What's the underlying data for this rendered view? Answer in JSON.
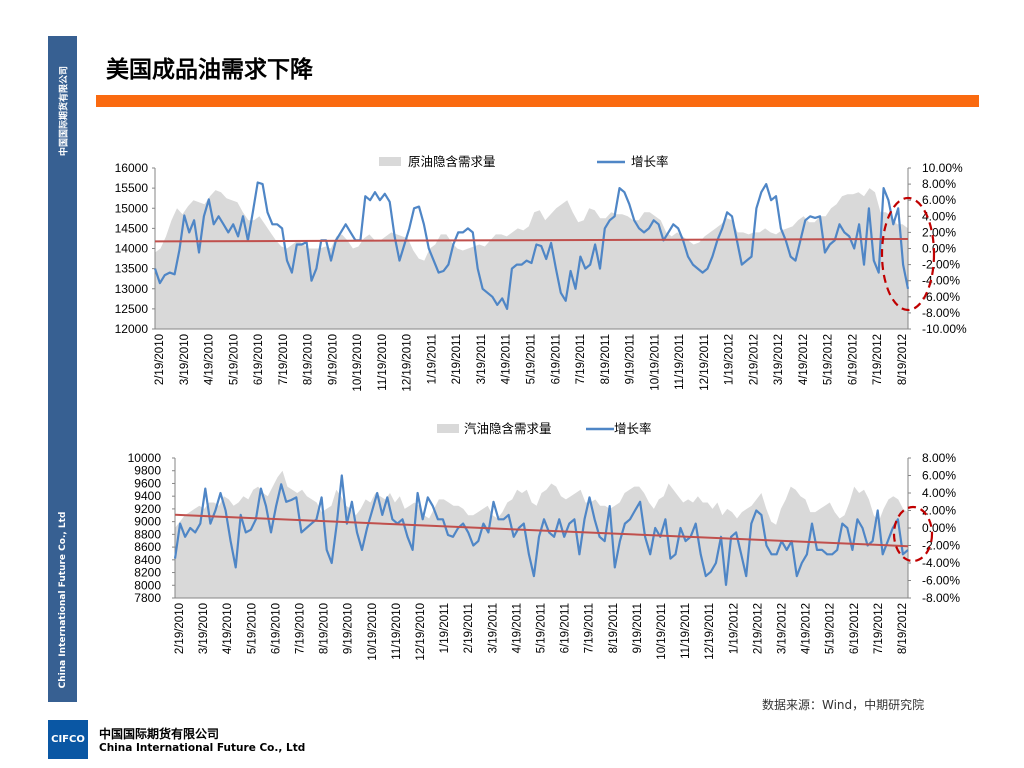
{
  "page": {
    "title": "美国成品油需求下降",
    "sidebar_cn": "中国国际期货有限公司",
    "sidebar_en": "China International Future Co., Ltd",
    "source": "数据来源：Wind，中期研究院",
    "logo_text": "CIFCO",
    "company_cn": "中国国际期货有限公司",
    "company_en": "China International Future Co., Ltd"
  },
  "colors": {
    "sidebar": "#376092",
    "accent_bar": "#fa6a10",
    "area": "#d9d9d9",
    "line": "#4f86c6",
    "trend": "#c0504d",
    "highlight": "#c00000"
  },
  "chart_data": [
    {
      "type": "area",
      "legend": [
        "原油隐含需求量",
        "增长率"
      ],
      "x_labels": [
        "2/19/2010",
        "3/19/2010",
        "4/19/2010",
        "5/19/2010",
        "6/19/2010",
        "7/19/2010",
        "8/19/2010",
        "9/19/2010",
        "10/19/2010",
        "11/19/2010",
        "12/19/2010",
        "1/19/2011",
        "2/19/2011",
        "3/19/2011",
        "4/19/2011",
        "5/19/2011",
        "6/19/2011",
        "7/19/2011",
        "8/19/2011",
        "9/19/2011",
        "10/19/2011",
        "11/19/2011",
        "12/19/2011",
        "1/19/2012",
        "2/19/2012",
        "3/19/2012",
        "4/19/2012",
        "5/19/2012",
        "6/19/2012",
        "7/19/2012",
        "8/19/2012"
      ],
      "y_left_ticks": [
        "16000",
        "15500",
        "15000",
        "14500",
        "14000",
        "13500",
        "13000",
        "12500",
        "12000"
      ],
      "y_right_ticks": [
        "10.00%",
        "8.00%",
        "6.00%",
        "4.00%",
        "2.00%",
        "0.00%",
        "-2.00%",
        "-4.00%",
        "-6.00%",
        "-8.00%",
        "-10.00%"
      ],
      "ylim_left": [
        12000,
        16000
      ],
      "ylim_right": [
        -10,
        10
      ],
      "series": [
        {
          "name": "原油隐含需求量",
          "type": "area",
          "values": [
            13900,
            14000,
            14300,
            14700,
            15000,
            14850,
            15050,
            15200,
            15150,
            15100,
            15300,
            15450,
            15400,
            15250,
            15200,
            15150,
            14900,
            14700,
            14700,
            14800,
            14600,
            14400,
            14200,
            14050,
            14000,
            14100,
            14200,
            14100,
            14000,
            14000,
            14000,
            14050,
            14000,
            14300,
            14350,
            14200,
            14000,
            14050,
            14250,
            14350,
            14200,
            14200,
            14300,
            14400,
            14350,
            14300,
            14250,
            13950,
            13750,
            13700,
            14000,
            14100,
            14350,
            14350,
            14150,
            14000,
            13950,
            14000,
            14050,
            14100,
            14050,
            14200,
            14350,
            14350,
            14300,
            14400,
            14500,
            14450,
            14550,
            14900,
            14950,
            14700,
            14850,
            15000,
            15100,
            15200,
            14900,
            14650,
            14700,
            15000,
            14950,
            14750,
            14750,
            14900,
            14850,
            14850,
            14800,
            14700,
            14700,
            14900,
            14900,
            14800,
            14700,
            14400,
            14300,
            14400,
            14300,
            14200,
            14100,
            14150,
            14300,
            14400,
            14500,
            14600,
            14750,
            14700,
            14400,
            14400,
            14350,
            14400,
            14400,
            14500,
            14400,
            14350,
            14450,
            14500,
            14550,
            14700,
            14800,
            14650,
            14650,
            14800,
            14800,
            15000,
            15100,
            15300,
            15350,
            15350,
            15400,
            15300,
            15500,
            15400,
            14900,
            14900,
            14800,
            14600,
            14600,
            14500
          ]
        },
        {
          "name": "增长率",
          "type": "line",
          "values": [
            -2.5,
            -4.3,
            -3.3,
            -3.0,
            -3.2,
            -0.2,
            4.1,
            2.0,
            3.5,
            -0.5,
            4.0,
            6.1,
            3.0,
            4.0,
            3.0,
            2.0,
            3.0,
            1.5,
            4.0,
            1.0,
            4.5,
            8.2,
            8.0,
            4.5,
            3.0,
            3.0,
            2.5,
            -1.5,
            -3.0,
            0.5,
            0.5,
            0.8,
            -4.0,
            -2.5,
            1.0,
            1.0,
            -1.5,
            1.0,
            2.0,
            3.0,
            2.0,
            1.0,
            1.0,
            6.5,
            6.0,
            7.0,
            6.0,
            6.8,
            5.8,
            1.5,
            -1.5,
            0.5,
            2.5,
            5.0,
            5.2,
            3.0,
            0.0,
            -1.5,
            -3.0,
            -2.8,
            -2.0,
            0.5,
            2.0,
            2.0,
            2.5,
            2.0,
            -2.5,
            -5.0,
            -5.5,
            -6.0,
            -7.0,
            -6.2,
            -7.5,
            -2.5,
            -2.0,
            -2.0,
            -1.5,
            -1.8,
            0.5,
            0.3,
            -1.3,
            0.7,
            -2.5,
            -5.5,
            -6.5,
            -2.8,
            -5.0,
            -1.0,
            -2.5,
            -2.0,
            0.5,
            -2.5,
            2.5,
            3.5,
            4.0,
            7.5,
            7.0,
            5.5,
            3.5,
            2.5,
            2.0,
            2.5,
            3.5,
            3.0,
            1.0,
            2.0,
            3.0,
            2.5,
            1.0,
            -1.0,
            -2.0,
            -2.5,
            -3.0,
            -2.5,
            -1.0,
            1.0,
            2.5,
            4.5,
            4.0,
            1.0,
            -2.0,
            -1.5,
            -1.0,
            5.0,
            7.0,
            8.0,
            6.0,
            6.5,
            2.5,
            1.0,
            -1.0,
            -1.5,
            1.0,
            3.5,
            4.0,
            3.8,
            4.0,
            -0.5,
            0.5,
            1.0,
            3.0,
            2.0,
            1.5,
            0.0,
            3.0,
            -2.0,
            5.0,
            -1.5,
            -3.0,
            7.5,
            6.0,
            3.0,
            5.0,
            -2.0,
            -5.0
          ]
        }
      ]
    },
    {
      "type": "area",
      "legend": [
        "汽油隐含需求量",
        "增长率"
      ],
      "x_labels": [
        "2/19/2010",
        "3/19/2010",
        "4/19/2010",
        "5/19/2010",
        "6/19/2010",
        "7/19/2010",
        "8/19/2010",
        "9/19/2010",
        "10/19/2010",
        "11/19/2010",
        "12/19/2010",
        "1/19/2011",
        "2/19/2011",
        "3/19/2011",
        "4/19/2011",
        "5/19/2011",
        "6/19/2011",
        "7/19/2011",
        "8/19/2011",
        "9/19/2011",
        "10/19/2011",
        "11/19/2011",
        "12/19/2011",
        "1/19/2012",
        "2/19/2012",
        "3/19/2012",
        "4/19/2012",
        "5/19/2012",
        "6/19/2012",
        "7/19/2012",
        "8/19/2012"
      ],
      "y_left_ticks": [
        "10000",
        "9800",
        "9600",
        "9400",
        "9200",
        "9000",
        "8800",
        "8600",
        "8400",
        "8200",
        "8000",
        "7800"
      ],
      "y_right_ticks": [
        "8.00%",
        "6.00%",
        "4.00%",
        "2.00%",
        "0.00%",
        "-2.00%",
        "-4.00%",
        "-6.00%",
        "-8.00%"
      ],
      "ylim_left": [
        7800,
        10000
      ],
      "ylim_right": [
        -8,
        8
      ],
      "series": [
        {
          "name": "汽油隐含需求量",
          "type": "area",
          "values": [
            8900,
            9000,
            9100,
            9150,
            9200,
            9250,
            9200,
            9300,
            9300,
            9250,
            9400,
            9350,
            9250,
            9300,
            9400,
            9350,
            9500,
            9550,
            9450,
            9400,
            9550,
            9700,
            9800,
            9550,
            9500,
            9450,
            9500,
            9400,
            9350,
            9300,
            9150,
            9200,
            9250,
            9500,
            9400,
            9250,
            9200,
            9100,
            9200,
            9350,
            9300,
            9450,
            9400,
            9350,
            9450,
            9300,
            9400,
            9200,
            9250,
            9300,
            9250,
            9100,
            9050,
            9200,
            9350,
            9350,
            9300,
            9250,
            9250,
            9200,
            9100,
            9100,
            9150,
            9200,
            9250,
            9100,
            9050,
            9150,
            9300,
            9350,
            9500,
            9450,
            9500,
            9300,
            9250,
            9450,
            9500,
            9600,
            9550,
            9400,
            9350,
            9400,
            9450,
            9500,
            9300,
            9300,
            9350,
            9250,
            9250,
            9200,
            9250,
            9300,
            9450,
            9500,
            9550,
            9550,
            9450,
            9300,
            9200,
            9350,
            9400,
            9600,
            9500,
            9400,
            9300,
            9350,
            9300,
            9400,
            9300,
            9300,
            9200,
            9300,
            9100,
            9200,
            9150,
            9050,
            9150,
            9200,
            9250,
            9350,
            9450,
            9200,
            9000,
            8950,
            9200,
            9350,
            9550,
            9500,
            9400,
            9350,
            9150,
            9150,
            9200,
            9250,
            9300,
            9150,
            9050,
            9100,
            9300,
            9550,
            9450,
            9500,
            9350,
            9100,
            9000,
            9200,
            9350,
            9400,
            9350,
            9200,
            9150
          ]
        },
        {
          "name": "增长率",
          "type": "line",
          "values": [
            -3.5,
            0.5,
            -1.0,
            0.0,
            -0.5,
            0.5,
            4.5,
            0.5,
            2.0,
            4.0,
            2.0,
            -1.5,
            -4.5,
            1.5,
            -0.5,
            -0.2,
            1.0,
            4.5,
            2.5,
            -0.5,
            2.5,
            5.0,
            3.0,
            3.2,
            3.5,
            -0.5,
            0.0,
            0.5,
            1.0,
            3.5,
            -2.5,
            -4.0,
            0.5,
            6.0,
            0.5,
            3.0,
            -0.5,
            -2.5,
            0.0,
            2.0,
            4.0,
            1.5,
            3.5,
            1.0,
            0.5,
            1.0,
            -1.0,
            -2.5,
            4.0,
            1.0,
            3.5,
            2.5,
            1.0,
            1.0,
            -0.8,
            -1.0,
            0.0,
            0.5,
            -0.5,
            -2.0,
            -1.5,
            0.5,
            -0.5,
            3.0,
            1.0,
            1.0,
            1.5,
            -1.0,
            0.0,
            0.5,
            -3.0,
            -5.5,
            -1.0,
            1.0,
            -0.5,
            -1.0,
            1.0,
            -1.0,
            0.5,
            1.0,
            -3.0,
            1.0,
            3.5,
            1.0,
            -1.0,
            -1.5,
            2.5,
            -4.5,
            -1.5,
            0.5,
            1.0,
            2.0,
            3.0,
            -1.0,
            -3.0,
            0.0,
            -1.0,
            1.0,
            -3.5,
            -3.0,
            0.0,
            -1.5,
            -1.0,
            0.5,
            -3.0,
            -5.5,
            -5.0,
            -4.0,
            -1.0,
            -6.5,
            -1.0,
            -0.5,
            -3.0,
            -5.5,
            0.5,
            2.0,
            1.5,
            -2.0,
            -3.0,
            -3.0,
            -1.5,
            -2.5,
            -1.5,
            -5.5,
            -4.0,
            -3.0,
            0.5,
            -2.5,
            -2.5,
            -3.0,
            -3.0,
            -2.5,
            0.5,
            0.0,
            -2.5,
            1.0,
            0.0,
            -2.0,
            -1.5,
            2.0,
            -3.0,
            -1.5,
            0.0,
            1.0,
            -3.0,
            -2.5
          ]
        }
      ]
    }
  ]
}
